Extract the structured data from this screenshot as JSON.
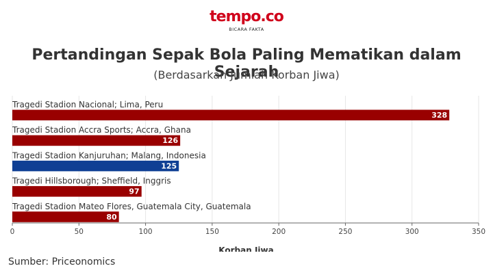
{
  "header": {
    "logo_text": "tempo.co",
    "logo_tagline": "BICARA FAKTA",
    "title": "Pertandingan Sepak Bola Paling Mematikan dalam Sejarah",
    "subtitle": "(Berdasarkan Jumlah Korban Jiwa)"
  },
  "footer": {
    "source": "Sumber: Priceonomics"
  },
  "colors": {
    "brand": "#d0021b",
    "bar_default": "#990000",
    "bar_highlight": "#0f3f94"
  },
  "chart_data": {
    "type": "bar",
    "orientation": "horizontal",
    "categories": [
      "Tragedi Stadion Nacional; Lima, Peru",
      "Tragedi Stadion Accra Sports; Accra, Ghana",
      "Tragedi Stadion Kanjuruhan; Malang, Indonesia",
      "Tragedi Hillsborough; Sheffield, Inggris",
      "Tragedi Stadion Mateo Flores, Guatemala City, Guatemala"
    ],
    "values": [
      328,
      126,
      125,
      97,
      80
    ],
    "highlight_index": 2,
    "xlabel": "Korban Jiwa",
    "xlim": [
      0,
      350
    ],
    "xticks": [
      0,
      50,
      100,
      150,
      200,
      250,
      300,
      350
    ],
    "grid": true
  }
}
